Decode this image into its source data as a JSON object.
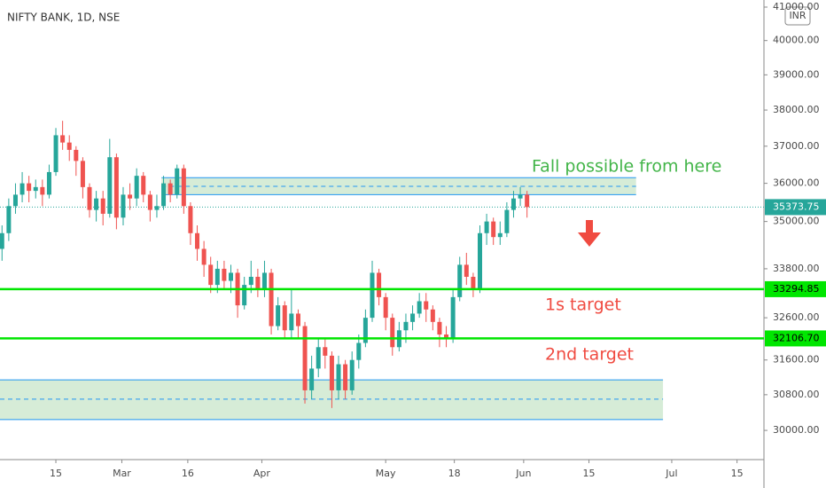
{
  "chart_data": {
    "type": "candlestick",
    "title": "NIFTY BANK, 1D, NSE",
    "currency": "INR",
    "log_scale": true,
    "colors": {
      "up": "#26a69a",
      "down": "#ef5350",
      "level": "#00e600",
      "zone_fill": "#c8e6c9",
      "zone_line": "#2196f3",
      "last": "#26a69a"
    },
    "x": [
      0,
      1,
      2,
      3,
      4,
      5,
      6,
      7,
      8,
      9,
      10,
      11,
      12,
      13,
      14,
      15,
      16,
      17,
      18,
      19,
      20,
      21,
      22,
      23,
      24,
      25,
      26,
      27,
      28,
      29,
      30,
      31,
      32,
      33,
      34,
      35,
      36,
      37,
      38,
      39,
      40,
      41,
      42,
      43,
      44,
      45,
      46,
      47,
      48,
      49,
      50,
      51,
      52,
      53,
      54,
      55,
      56,
      57,
      58,
      59,
      60,
      61,
      62,
      63,
      64,
      65,
      66,
      67,
      68,
      69,
      70,
      71,
      72,
      73,
      74,
      75,
      76,
      77,
      78
    ],
    "open": [
      34300,
      34700,
      35400,
      35700,
      36000,
      35800,
      35900,
      35700,
      36300,
      37300,
      37100,
      36900,
      36600,
      35900,
      35300,
      35600,
      35200,
      36700,
      35100,
      35700,
      35600,
      36200,
      35700,
      35300,
      35400,
      36000,
      35700,
      36400,
      35400,
      34700,
      34300,
      33900,
      33400,
      33800,
      33500,
      33700,
      32900,
      33400,
      33600,
      33300,
      33700,
      32400,
      32900,
      32300,
      32700,
      32400,
      30900,
      31400,
      31900,
      31700,
      30900,
      31500,
      30900,
      31600,
      32000,
      32600,
      33700,
      33100,
      32600,
      31900,
      32300,
      32500,
      32700,
      33000,
      32800,
      32500,
      32200,
      32100,
      33100,
      33900,
      33600,
      33300,
      34700,
      35000,
      34600,
      34700,
      35300,
      35600,
      35700
    ],
    "high": [
      34900,
      35600,
      36000,
      36300,
      36200,
      36100,
      36100,
      36500,
      37500,
      37700,
      37300,
      37000,
      36700,
      36000,
      35800,
      35800,
      37200,
      36800,
      35900,
      36000,
      36400,
      36300,
      35800,
      35700,
      36200,
      36100,
      36500,
      36500,
      35500,
      34900,
      34500,
      34100,
      34000,
      34000,
      33900,
      33800,
      33600,
      34000,
      33800,
      34000,
      33800,
      33100,
      33000,
      33300,
      32800,
      32500,
      31700,
      32100,
      32100,
      31800,
      31700,
      31600,
      31800,
      32200,
      32800,
      34000,
      33800,
      33200,
      32700,
      32500,
      32700,
      32900,
      33200,
      33200,
      32900,
      32600,
      32400,
      33300,
      34100,
      34200,
      33700,
      34900,
      35200,
      35100,
      35000,
      35500,
      35800,
      35900,
      35800
    ],
    "low": [
      34000,
      34500,
      35200,
      35500,
      35500,
      35600,
      35400,
      35600,
      36200,
      36900,
      36600,
      36200,
      35600,
      35100,
      35000,
      34900,
      35100,
      34800,
      34900,
      35300,
      35400,
      35500,
      35000,
      35100,
      35300,
      35500,
      35600,
      35200,
      34400,
      34000,
      33600,
      33200,
      33200,
      33300,
      33200,
      32600,
      32800,
      33200,
      33100,
      33100,
      32200,
      32300,
      32100,
      32100,
      32100,
      30600,
      30700,
      31200,
      31400,
      30500,
      30700,
      30700,
      30800,
      31400,
      31900,
      32500,
      32900,
      32300,
      31700,
      31800,
      32000,
      32300,
      32600,
      32500,
      32300,
      31900,
      31900,
      32000,
      33000,
      33400,
      33100,
      33200,
      34400,
      34400,
      34400,
      34600,
      35100,
      35400,
      35100
    ],
    "close": [
      34700,
      35400,
      35700,
      36000,
      35800,
      35900,
      35700,
      36300,
      37300,
      37100,
      36900,
      36600,
      35900,
      35300,
      35600,
      35200,
      36700,
      35100,
      35700,
      35600,
      36200,
      35700,
      35300,
      35400,
      36000,
      35700,
      36400,
      35400,
      34700,
      34300,
      33900,
      33400,
      33800,
      33500,
      33700,
      32900,
      33400,
      33600,
      33300,
      33700,
      32400,
      32900,
      32300,
      32700,
      32400,
      30900,
      31400,
      31900,
      31700,
      30900,
      31500,
      30900,
      31600,
      32000,
      32600,
      33700,
      33100,
      32600,
      31900,
      32300,
      32500,
      32700,
      33000,
      32800,
      32500,
      32200,
      32100,
      33100,
      33900,
      33600,
      33300,
      34700,
      35000,
      34600,
      34700,
      35300,
      35600,
      35700,
      35373.75
    ],
    "xlim": [
      -0.3,
      113.2
    ],
    "xticks": [
      {
        "value": 8,
        "label": "15"
      },
      {
        "value": 17.8,
        "label": "Mar"
      },
      {
        "value": 27.6,
        "label": "16"
      },
      {
        "value": 38.6,
        "label": "Apr"
      },
      {
        "value": 57,
        "label": "May"
      },
      {
        "value": 67.2,
        "label": "18"
      },
      {
        "value": 77.5,
        "label": "Jun"
      },
      {
        "value": 87.2,
        "label": "15"
      },
      {
        "value": 99.5,
        "label": "Jul"
      },
      {
        "value": 109.2,
        "label": "15"
      }
    ],
    "ylim": [
      29360,
      41215
    ],
    "yticks": [
      {
        "value": 30000,
        "label": "30000.00"
      },
      {
        "value": 30800,
        "label": "30800.00"
      },
      {
        "value": 31600,
        "label": "31600.00"
      },
      {
        "value": 32600,
        "label": "32600.00"
      },
      {
        "value": 33800,
        "label": "33800.00"
      },
      {
        "value": 35000,
        "label": "35000.00"
      },
      {
        "value": 36000,
        "label": "36000.00"
      },
      {
        "value": 37000,
        "label": "37000.00"
      },
      {
        "value": 38000,
        "label": "38000.00"
      },
      {
        "value": 39000,
        "label": "39000.00"
      },
      {
        "value": 40000,
        "label": "40000.00"
      },
      {
        "value": 41000,
        "label": "41000.00"
      }
    ],
    "last_price": 35373.75,
    "levels": [
      33294.85,
      32106.7
    ],
    "value_labels": [
      "33294.85",
      "32106.70"
    ],
    "zones": [
      {
        "x": [
          23.7,
          94.2
        ],
        "y": [
          35700,
          36150
        ],
        "mid": 35920
      },
      {
        "x": [
          -0.3,
          98.2
        ],
        "y": [
          30240,
          31140
        ],
        "mid": 30700
      }
    ],
    "annotations": [
      {
        "text": "Fall possible from here",
        "color": "#43b549"
      },
      {
        "text": "1s target",
        "color": "#f04b41"
      },
      {
        "text": "2nd target",
        "color": "#f04b41"
      }
    ]
  }
}
